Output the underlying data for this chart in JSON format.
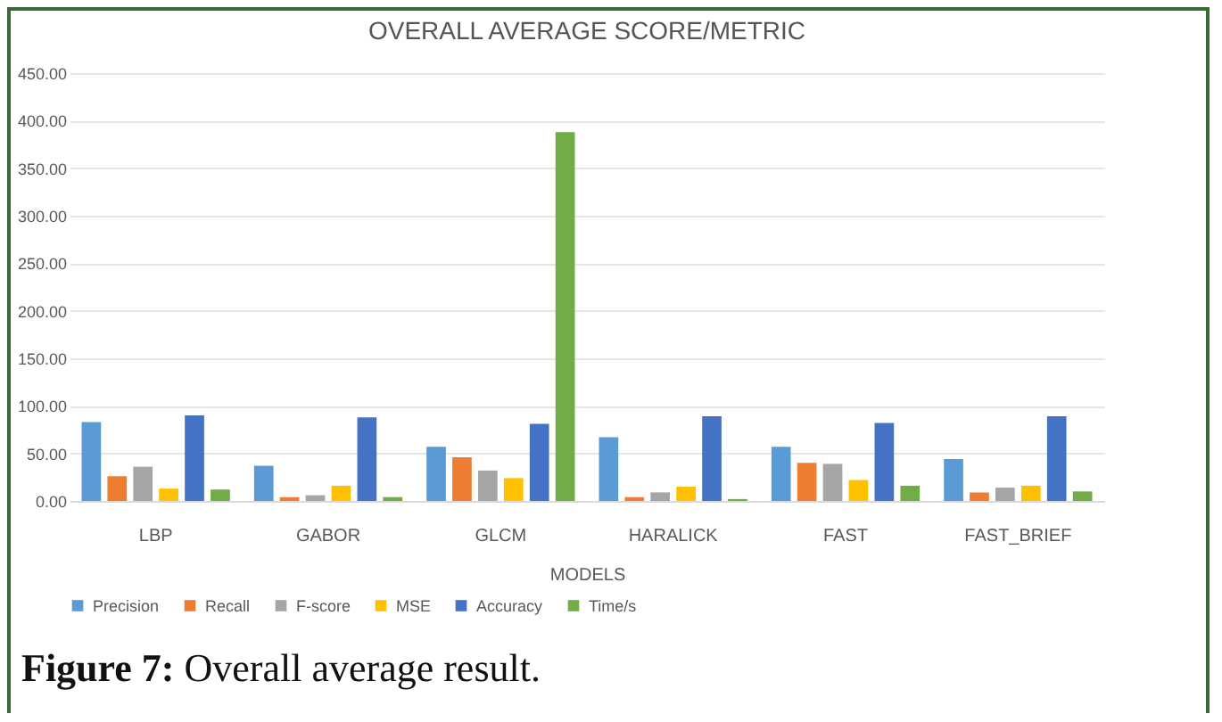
{
  "chart_data": {
    "type": "bar",
    "title": "OVERALL AVERAGE SCORE/METRIC",
    "xlabel": "MODELS",
    "categories": [
      "LBP",
      "GABOR",
      "GLCM",
      "HARALICK",
      "FAST",
      "FAST_BRIEF"
    ],
    "series": [
      {
        "name": "Precision",
        "color": "#5b9bd5",
        "values": [
          83,
          37,
          57,
          67,
          57,
          44
        ]
      },
      {
        "name": "Recall",
        "color": "#ed7d31",
        "values": [
          26,
          4,
          46,
          4,
          40,
          9
        ]
      },
      {
        "name": "F-score",
        "color": "#a5a5a5",
        "values": [
          36,
          6,
          32,
          9,
          39,
          14
        ]
      },
      {
        "name": "MSE",
        "color": "#ffc000",
        "values": [
          13,
          16,
          24,
          15,
          22,
          16
        ]
      },
      {
        "name": "Accuracy",
        "color": "#4472c4",
        "values": [
          90,
          88,
          81,
          89,
          82,
          89
        ]
      },
      {
        "name": "Time/s",
        "color": "#70ad47",
        "values": [
          12,
          4,
          388,
          2,
          16,
          10
        ]
      }
    ],
    "ylim": [
      0,
      450
    ],
    "yticks": [
      {
        "value": 0,
        "label": "0.00"
      },
      {
        "value": 50,
        "label": "50.00"
      },
      {
        "value": 100,
        "label": "100.00"
      },
      {
        "value": 150,
        "label": "150.00"
      },
      {
        "value": 200,
        "label": "200.00"
      },
      {
        "value": 250,
        "label": "250.00"
      },
      {
        "value": 300,
        "label": "300.00"
      },
      {
        "value": 350,
        "label": "350.00"
      },
      {
        "value": 400,
        "label": "400.00"
      },
      {
        "value": 450,
        "label": "450.00"
      }
    ],
    "grid": "y",
    "legend": "bottom",
    "annotations": [
      "Figure 7: Overall average result."
    ]
  }
}
